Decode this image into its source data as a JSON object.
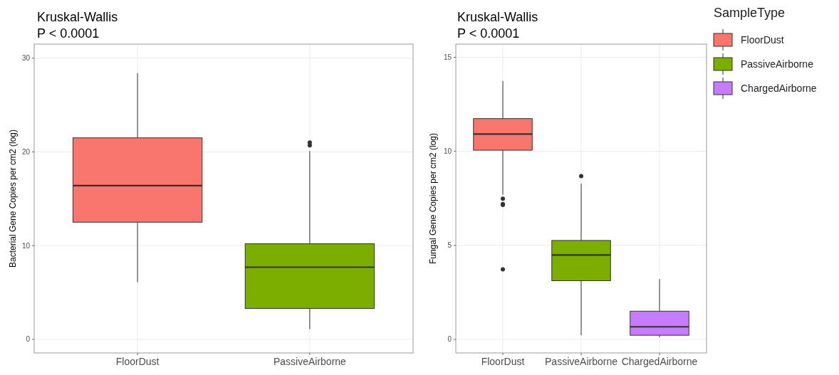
{
  "chart_data": [
    {
      "type": "box",
      "annotations": [
        "Kruskal-Wallis",
        "P < 0.0001"
      ],
      "ylabel": "Bacterial Gene Copies per cm2 (log)",
      "categories": [
        "FloorDust",
        "PassiveAirborne"
      ],
      "colors": [
        "#f8766d",
        "#7cae00"
      ],
      "boxes": [
        {
          "low": 6.1,
          "q1": 12.5,
          "median": 16.4,
          "q3": 21.5,
          "high": 28.4
        },
        {
          "low": 1.1,
          "q1": 3.3,
          "median": 7.7,
          "q3": 10.2,
          "high": 20.1,
          "outliers": [
            20.7,
            21.0
          ]
        }
      ],
      "ylim": [
        -1.45,
        31.5
      ],
      "yticks": [
        0,
        10,
        20,
        30
      ],
      "grid": true,
      "legend": false
    },
    {
      "type": "box",
      "annotations": [
        "Kruskal-Wallis",
        "P < 0.0001"
      ],
      "ylabel": "Fungal Gene Copies per cm2 (log)",
      "categories": [
        "FloorDust",
        "PassiveAirborne",
        "ChargedAirborne"
      ],
      "series": [
        {
          "name": "FloorDust",
          "color": "#f8766d",
          "boxes": [
            {
              "low": 7.7,
              "q1": 10.06,
              "median": 10.92,
              "q3": 11.74,
              "high": 13.74,
              "outliers": [
                7.48,
                7.2,
                7.15,
                3.73
              ]
            },
            null,
            null
          ]
        },
        {
          "name": "PassiveAirborne",
          "color": "#7cae00",
          "boxes": [
            null,
            {
              "low": 0.22,
              "q1": 3.12,
              "median": 4.49,
              "q3": 5.26,
              "high": 8.29,
              "outliers": [
                8.68
              ]
            },
            null
          ]
        },
        {
          "name": "ChargedAirborne",
          "color": "#c77cff",
          "boxes": [
            null,
            null,
            {
              "low": 0.11,
              "q1": 0.22,
              "median": 0.67,
              "q3": 1.5,
              "high": 3.21
            }
          ]
        }
      ],
      "ylim": [
        -0.72,
        15.7
      ],
      "yticks": [
        0,
        5,
        10,
        15
      ],
      "grid": true,
      "legend": "top right",
      "legend_title": "SampleType"
    }
  ]
}
